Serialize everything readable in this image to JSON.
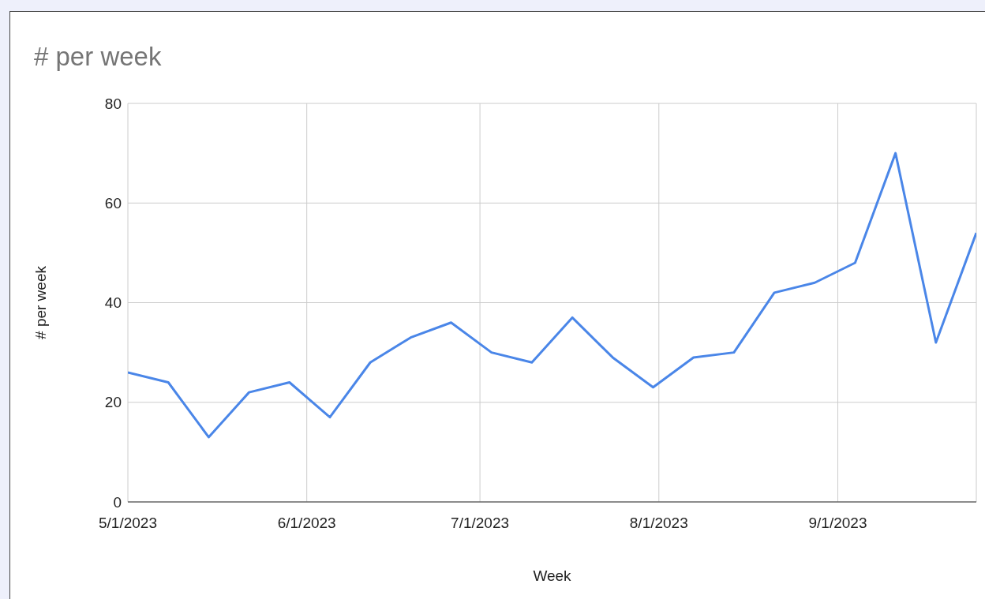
{
  "chart_data": {
    "type": "line",
    "title": "# per week",
    "xlabel": "Week",
    "ylabel": "# per week",
    "x": [
      "2023-05-01",
      "2023-05-08",
      "2023-05-15",
      "2023-05-22",
      "2023-05-29",
      "2023-06-05",
      "2023-06-12",
      "2023-06-19",
      "2023-06-26",
      "2023-07-03",
      "2023-07-10",
      "2023-07-17",
      "2023-07-24",
      "2023-07-31",
      "2023-08-07",
      "2023-08-14",
      "2023-08-21",
      "2023-08-28",
      "2023-09-04",
      "2023-09-11",
      "2023-09-18",
      "2023-09-25"
    ],
    "series": [
      {
        "color": "#4a86e8",
        "values": [
          26,
          24,
          13,
          22,
          24,
          17,
          28,
          33,
          36,
          30,
          28,
          37,
          29,
          23,
          29,
          30,
          42,
          44,
          48,
          70,
          32,
          54
        ]
      }
    ],
    "xlim": [
      "2023-05-01",
      "2023-09-25"
    ],
    "xticks": [
      {
        "value": "2023-05-01",
        "label": "5/1/2023"
      },
      {
        "value": "2023-06-01",
        "label": "6/1/2023"
      },
      {
        "value": "2023-07-01",
        "label": "7/1/2023"
      },
      {
        "value": "2023-08-01",
        "label": "8/1/2023"
      },
      {
        "value": "2023-09-01",
        "label": "9/1/2023"
      }
    ],
    "ylim": [
      0,
      80
    ],
    "yticks": [
      0,
      20,
      40,
      60,
      80
    ],
    "grid": true,
    "marker": "none",
    "line_style": "solid"
  }
}
